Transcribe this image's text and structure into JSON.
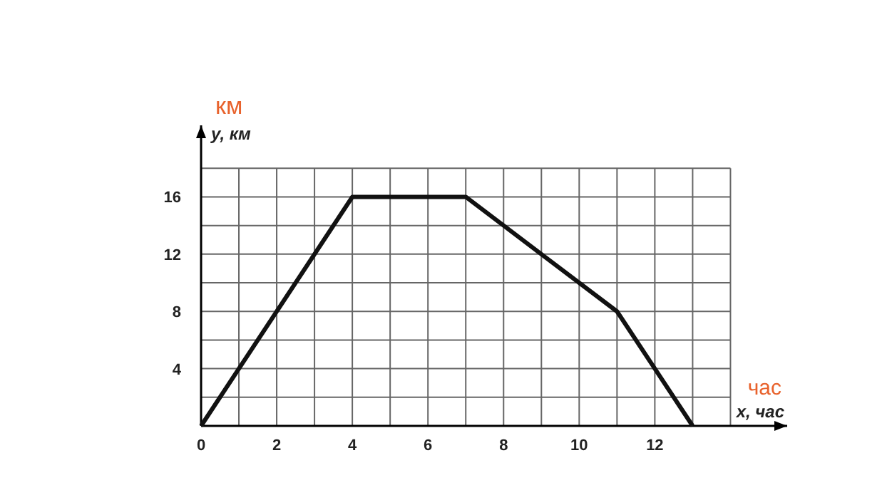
{
  "chart_data": {
    "type": "line",
    "xlabel": "x, час",
    "ylabel": "y, км",
    "annotations": [
      "км",
      "час"
    ],
    "x": [
      0,
      4,
      7,
      11,
      13
    ],
    "series": [
      {
        "color": "#111111",
        "values": [
          0,
          16,
          16,
          8,
          0
        ]
      }
    ],
    "xlim": [
      0,
      15.5
    ],
    "ylim": [
      0,
      21
    ],
    "xticks": [
      0,
      {
        "value": 1,
        "label": null
      },
      2,
      {
        "value": 3,
        "label": null
      },
      4,
      {
        "value": 5,
        "label": null
      },
      6,
      {
        "value": 7,
        "label": null
      },
      8,
      {
        "value": 9,
        "label": null
      },
      10,
      {
        "value": 11,
        "label": null
      },
      12,
      {
        "value": 13,
        "label": null
      },
      {
        "value": 14,
        "label": null
      }
    ],
    "yticks": [
      {
        "value": 0,
        "label": null
      },
      {
        "value": 2,
        "label": null
      },
      4,
      {
        "value": 6,
        "label": null
      },
      8,
      {
        "value": 10,
        "label": null
      },
      12,
      {
        "value": 14,
        "label": null
      },
      16,
      {
        "value": 18,
        "label": null
      }
    ],
    "grid": true,
    "marker": "none",
    "line_style": "solid"
  }
}
